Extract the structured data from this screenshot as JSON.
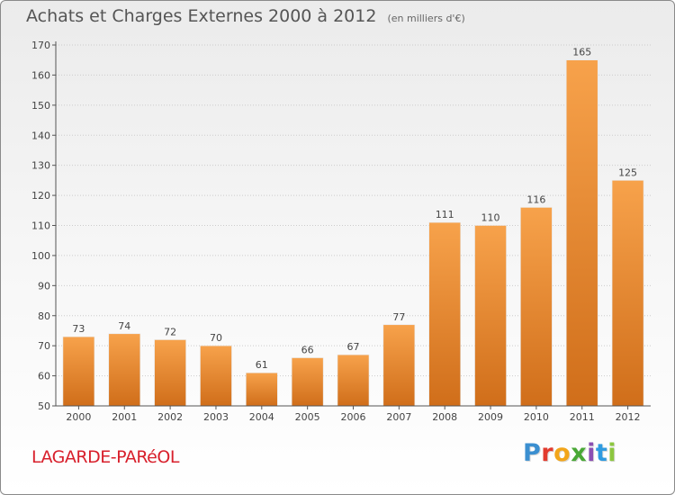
{
  "header": {
    "title": "Achats et Charges Externes 2000 à 2012",
    "unit": "(en milliers d'€)"
  },
  "footer": {
    "commune": "LAGARDE-PARéOL",
    "logo_letters": [
      "P",
      "r",
      "o",
      "x",
      "i",
      "t",
      "i"
    ],
    "logo_colors": [
      "#3b8fd0",
      "#e23b2e",
      "#f2a51a",
      "#49a836",
      "#8b4fb3",
      "#2f9be0",
      "#8cc63f"
    ]
  },
  "colors": {
    "bar_light": "#f7a24b",
    "bar_dark": "#d06e1a",
    "axis": "#555555",
    "grid": "#cccccc"
  },
  "chart_data": {
    "type": "bar",
    "title": "Achats et Charges Externes 2000 à 2012",
    "xlabel": "",
    "ylabel": "",
    "categories": [
      "2000",
      "2001",
      "2002",
      "2003",
      "2004",
      "2005",
      "2006",
      "2007",
      "2008",
      "2009",
      "2010",
      "2011",
      "2012"
    ],
    "values": [
      73,
      74,
      72,
      70,
      61,
      66,
      67,
      77,
      111,
      110,
      116,
      165,
      125
    ],
    "ylim": [
      50,
      170
    ],
    "yticks": [
      50,
      60,
      70,
      80,
      90,
      100,
      110,
      120,
      130,
      140,
      150,
      160,
      170
    ],
    "grid": true,
    "data_labels": true,
    "legend": "none"
  }
}
